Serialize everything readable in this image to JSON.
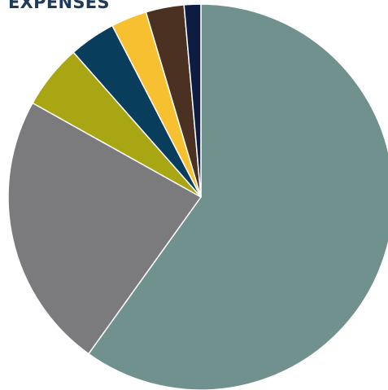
{
  "chart_data": {
    "type": "pie",
    "title": "EXPENSES",
    "legend": "none",
    "slices": [
      {
        "value": 59.9,
        "color": "#71918f"
      },
      {
        "value": 23.2,
        "color": "#7b7b7e"
      },
      {
        "value": 5.4,
        "color": "#a8a613"
      },
      {
        "value": 3.9,
        "color": "#083d5c"
      },
      {
        "value": 3.0,
        "color": "#f6c031"
      },
      {
        "value": 3.2,
        "color": "#4b3122"
      },
      {
        "value": 1.4,
        "color": "#0e1c42"
      }
    ]
  }
}
